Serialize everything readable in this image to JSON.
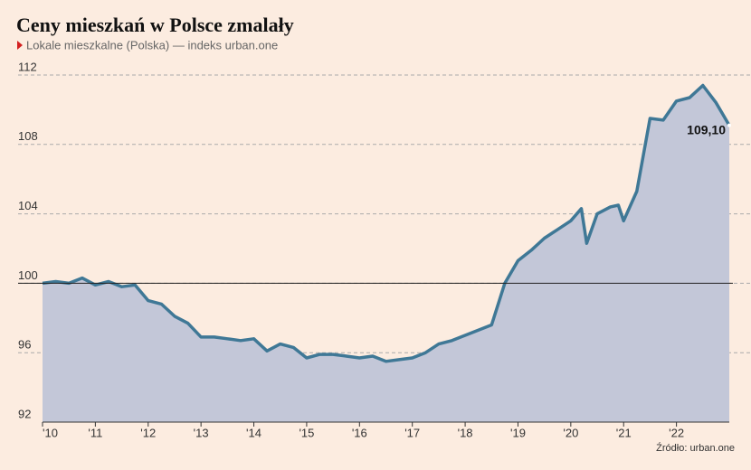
{
  "chart_data": {
    "type": "area",
    "title": "Ceny mieszkań w Polsce zmalały",
    "subtitle": "Lokale mieszkalne (Polska) — indeks urban.one",
    "source": "Źródło: urban.one",
    "reference_line": 100,
    "series": [
      {
        "color": "#3f7896",
        "fill": "#c3c7d8",
        "x": [
          2010,
          2010.25,
          2010.5,
          2010.75,
          2011,
          2011.25,
          2011.5,
          2011.75,
          2012,
          2012.25,
          2012.5,
          2012.75,
          2013,
          2013.25,
          2013.5,
          2013.75,
          2014,
          2014.25,
          2014.5,
          2014.75,
          2015,
          2015.25,
          2015.5,
          2015.75,
          2016,
          2016.25,
          2016.5,
          2016.75,
          2017,
          2017.25,
          2017.5,
          2017.75,
          2018,
          2018.25,
          2018.5,
          2018.75,
          2019,
          2019.25,
          2019.5,
          2019.75,
          2020,
          2020.2,
          2020.3,
          2020.5,
          2020.75,
          2020.9,
          2021,
          2021.25,
          2021.5,
          2021.75,
          2022,
          2022.25,
          2022.5,
          2022.75,
          2023
        ],
        "values": [
          100.0,
          100.1,
          100.0,
          100.3,
          99.9,
          100.1,
          99.8,
          99.9,
          99.0,
          98.8,
          98.1,
          97.7,
          96.9,
          96.9,
          96.8,
          96.7,
          96.8,
          96.1,
          96.5,
          96.3,
          95.7,
          95.9,
          95.9,
          95.8,
          95.7,
          95.8,
          95.5,
          95.6,
          95.7,
          96.0,
          96.5,
          96.7,
          97.0,
          97.3,
          97.6,
          100.0,
          101.3,
          101.9,
          102.6,
          103.1,
          103.6,
          104.3,
          102.3,
          104.0,
          104.4,
          104.5,
          103.6,
          105.3,
          109.5,
          109.4,
          110.5,
          110.7,
          111.4,
          110.4,
          109.1
        ],
        "value_labels": {
          "54": "109,10"
        }
      }
    ],
    "xlim": [
      2010,
      2023
    ],
    "xticks": [
      {
        "value": 2010,
        "label": "'10"
      },
      {
        "value": 2011,
        "label": "'11"
      },
      {
        "value": 2012,
        "label": "'12"
      },
      {
        "value": 2013,
        "label": "'13"
      },
      {
        "value": 2014,
        "label": "'14"
      },
      {
        "value": 2015,
        "label": "'15"
      },
      {
        "value": 2016,
        "label": "'16"
      },
      {
        "value": 2017,
        "label": "'17"
      },
      {
        "value": 2018,
        "label": "'18"
      },
      {
        "value": 2019,
        "label": "'19"
      },
      {
        "value": 2020,
        "label": "'20"
      },
      {
        "value": 2021,
        "label": "'21"
      },
      {
        "value": 2022,
        "label": "'22"
      }
    ],
    "ylim": [
      92,
      112
    ],
    "yticks": [
      92,
      96,
      100,
      104,
      108,
      112
    ],
    "grid": true
  }
}
